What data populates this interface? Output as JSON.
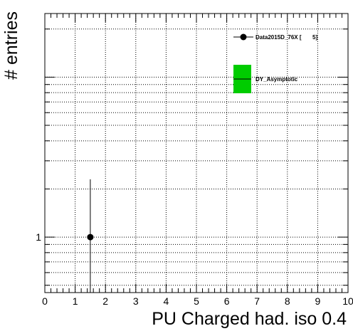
{
  "chart_data": {
    "type": "scatter",
    "xlabel": "PU Charged had. iso 0.4",
    "ylabel": "# entries",
    "x_ticks": [
      "0",
      "1",
      "2",
      "3",
      "4",
      "5",
      "6",
      "7",
      "8",
      "9",
      "10"
    ],
    "y_tick_labels": [
      "1"
    ],
    "xlim": [
      0,
      10
    ],
    "ylim": [
      0.45,
      25
    ],
    "y_scale": "log",
    "grid": true,
    "legend_position": "top-right",
    "series": [
      {
        "name": "Data2015D_76X [       5]",
        "kind": "points_with_errors",
        "color": "#000000",
        "points": [
          {
            "x": 1.5,
            "y": 1,
            "yerr_low": 1,
            "yerr_high": 1.3
          }
        ]
      },
      {
        "name": "DY_Asymptotic",
        "kind": "filled_histogram",
        "color": "#00cc00",
        "points": []
      }
    ]
  }
}
